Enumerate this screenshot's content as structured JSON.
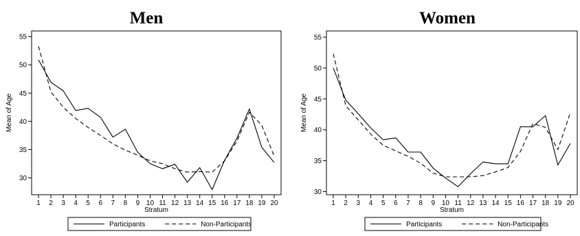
{
  "chart_data": [
    {
      "type": "line",
      "title": "Men",
      "xlabel": "Stratum",
      "ylabel": "Mean of Age",
      "x": [
        1,
        2,
        3,
        4,
        5,
        6,
        7,
        8,
        9,
        10,
        11,
        12,
        13,
        14,
        15,
        16,
        17,
        18,
        19,
        20
      ],
      "xlim": [
        1,
        20
      ],
      "ylim": [
        27,
        56
      ],
      "yticks": [
        30,
        35,
        40,
        45,
        50,
        55
      ],
      "grid": false,
      "legend_position": "bottom",
      "series": [
        {
          "name": "Participants",
          "style": "solid",
          "color": "#000000",
          "values": [
            50.9,
            46.9,
            45.4,
            41.9,
            42.3,
            40.7,
            37.2,
            38.6,
            34.5,
            32.5,
            31.6,
            32.4,
            29.2,
            31.8,
            27.9,
            33.1,
            37.0,
            42.2,
            35.4,
            32.7
          ]
        },
        {
          "name": "Non-Participants",
          "style": "dashed",
          "color": "#000000",
          "values": [
            53.3,
            45.2,
            42.5,
            40.5,
            38.9,
            37.5,
            36.0,
            34.9,
            34.0,
            33.0,
            32.5,
            31.6,
            31.0,
            31.1,
            31.0,
            33.0,
            36.5,
            41.6,
            39.3,
            33.8
          ]
        }
      ]
    },
    {
      "type": "line",
      "title": "Women",
      "xlabel": "Stratum",
      "ylabel": "Mean of Age",
      "x": [
        1,
        2,
        3,
        4,
        5,
        6,
        7,
        8,
        9,
        10,
        11,
        12,
        13,
        14,
        15,
        16,
        17,
        18,
        19,
        20
      ],
      "xlim": [
        1,
        20
      ],
      "ylim": [
        29.5,
        56
      ],
      "yticks": [
        30,
        35,
        40,
        45,
        50,
        55
      ],
      "grid": false,
      "legend_position": "bottom",
      "series": [
        {
          "name": "Participants",
          "style": "solid",
          "color": "#000000",
          "values": [
            50.0,
            44.8,
            42.6,
            40.3,
            38.4,
            38.7,
            36.4,
            36.4,
            33.8,
            32.2,
            30.8,
            32.9,
            34.8,
            34.5,
            34.5,
            40.5,
            40.5,
            42.3,
            34.3,
            37.8
          ]
        },
        {
          "name": "Non-Participants",
          "style": "dashed",
          "color": "#000000",
          "values": [
            52.3,
            43.9,
            41.6,
            39.3,
            37.5,
            36.6,
            35.7,
            34.6,
            33.0,
            32.4,
            32.4,
            32.4,
            32.6,
            33.2,
            33.9,
            36.5,
            41.0,
            40.4,
            36.8,
            42.8
          ]
        }
      ]
    }
  ]
}
